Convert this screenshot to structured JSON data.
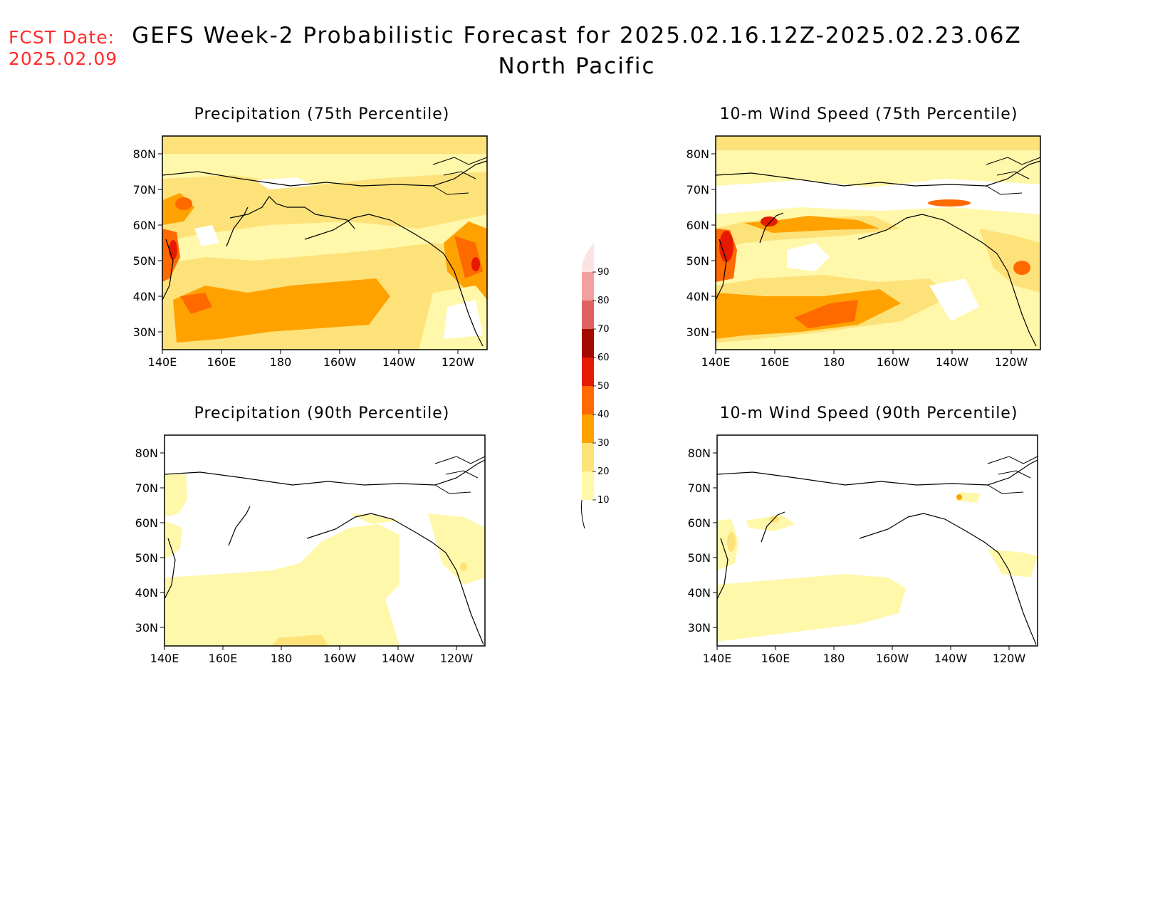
{
  "header": {
    "fcst_label": "FCST Date:",
    "fcst_date": "2025.02.09",
    "title": "GEFS Week-2 Probabilistic Forecast for 2025.02.16.12Z-2025.02.23.06Z",
    "region": "North Pacific"
  },
  "panels": [
    {
      "title": "Precipitation (75th Percentile)"
    },
    {
      "title": "10-m Wind Speed (75th Percentile)"
    },
    {
      "title": "Precipitation (90th Percentile)"
    },
    {
      "title": "10-m Wind Speed (90th Percentile)"
    }
  ],
  "axes": {
    "lat_labels": [
      "80N",
      "70N",
      "60N",
      "50N",
      "40N",
      "30N"
    ],
    "lon_labels": [
      "140E",
      "160E",
      "180",
      "160W",
      "140W",
      "120W"
    ]
  },
  "colorbar": {
    "levels": [
      "10",
      "20",
      "30",
      "40",
      "50",
      "60",
      "70",
      "80",
      "90"
    ],
    "colors": [
      "#fff7aa",
      "#fde27a",
      "#ffa200",
      "#ff6a00",
      "#e61a00",
      "#a50a00",
      "#dd6363",
      "#f2a0a0",
      "#fde2e2"
    ]
  },
  "colors": {
    "fcst": "#ff2a2a"
  }
}
